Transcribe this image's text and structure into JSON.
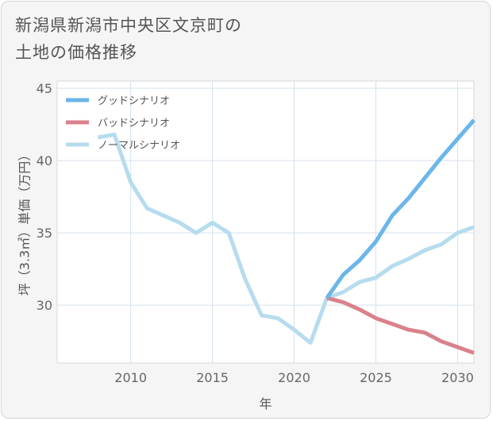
{
  "chart_data": {
    "type": "line",
    "title_lines": [
      "新潟県新潟市中央区文京町の",
      "土地の価格推移"
    ],
    "xlabel": "年",
    "ylabel": "坪（3.3㎡）単価（万円）",
    "xlim": [
      2005.5,
      2031
    ],
    "ylim": [
      26,
      45.5
    ],
    "x_ticks": [
      2010,
      2015,
      2020,
      2025,
      2030
    ],
    "y_ticks": [
      30,
      35,
      40,
      45
    ],
    "legend_position": "top-left",
    "series": [
      {
        "name": "グッドシナリオ",
        "color": "#6bb6ea",
        "x": [
          2022,
          2023,
          2024,
          2025,
          2026,
          2027,
          2028,
          2029,
          2030,
          2031
        ],
        "values": [
          30.5,
          32.1,
          33.1,
          34.4,
          36.2,
          37.4,
          38.8,
          40.2,
          41.5,
          42.8
        ]
      },
      {
        "name": "バッドシナリオ",
        "color": "#d9828b",
        "x": [
          2022,
          2023,
          2024,
          2025,
          2026,
          2027,
          2028,
          2029,
          2030,
          2031
        ],
        "values": [
          30.5,
          30.2,
          29.7,
          29.1,
          28.7,
          28.3,
          28.1,
          27.5,
          27.1,
          26.7
        ]
      },
      {
        "name": "ノーマルシナリオ",
        "color": "#b6dcee",
        "x": [
          2008,
          2009,
          2010,
          2011,
          2012,
          2013,
          2014,
          2015,
          2016,
          2017,
          2018,
          2019,
          2020,
          2021,
          2022,
          2023,
          2024,
          2025,
          2026,
          2027,
          2028,
          2029,
          2030,
          2031
        ],
        "values": [
          41.6,
          41.8,
          38.5,
          36.7,
          36.2,
          35.7,
          35.0,
          35.7,
          35.0,
          31.8,
          29.3,
          29.1,
          28.3,
          27.4,
          30.5,
          30.9,
          31.6,
          31.9,
          32.7,
          33.2,
          33.8,
          34.2,
          35.0,
          35.4
        ]
      }
    ]
  }
}
